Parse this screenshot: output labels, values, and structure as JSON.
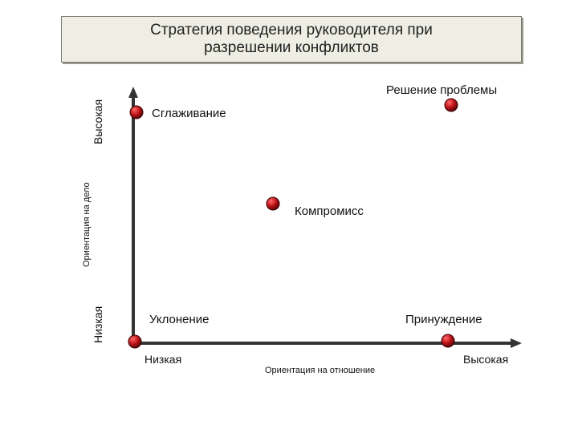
{
  "title": "Стратегия поведения руководителя при\nразрешении конфликтов",
  "y_axis": {
    "label": "Ориентация на дело",
    "low": "Низкая",
    "high": "Высокая"
  },
  "x_axis": {
    "label": "Ориентация на отношение",
    "low": "Низкая",
    "high": "Высокая"
  },
  "strategies": [
    {
      "name": "Сглаживание",
      "relation": "low",
      "task": "high"
    },
    {
      "name": "Решение проблемы",
      "relation": "high",
      "task": "high"
    },
    {
      "name": "Компромисс",
      "relation": "medium",
      "task": "medium"
    },
    {
      "name": "Уклонение",
      "relation": "low",
      "task": "low"
    },
    {
      "name": "Принуждение",
      "relation": "high",
      "task": "low"
    }
  ],
  "colors": {
    "point": "#c0141a",
    "axis": "#333333"
  }
}
